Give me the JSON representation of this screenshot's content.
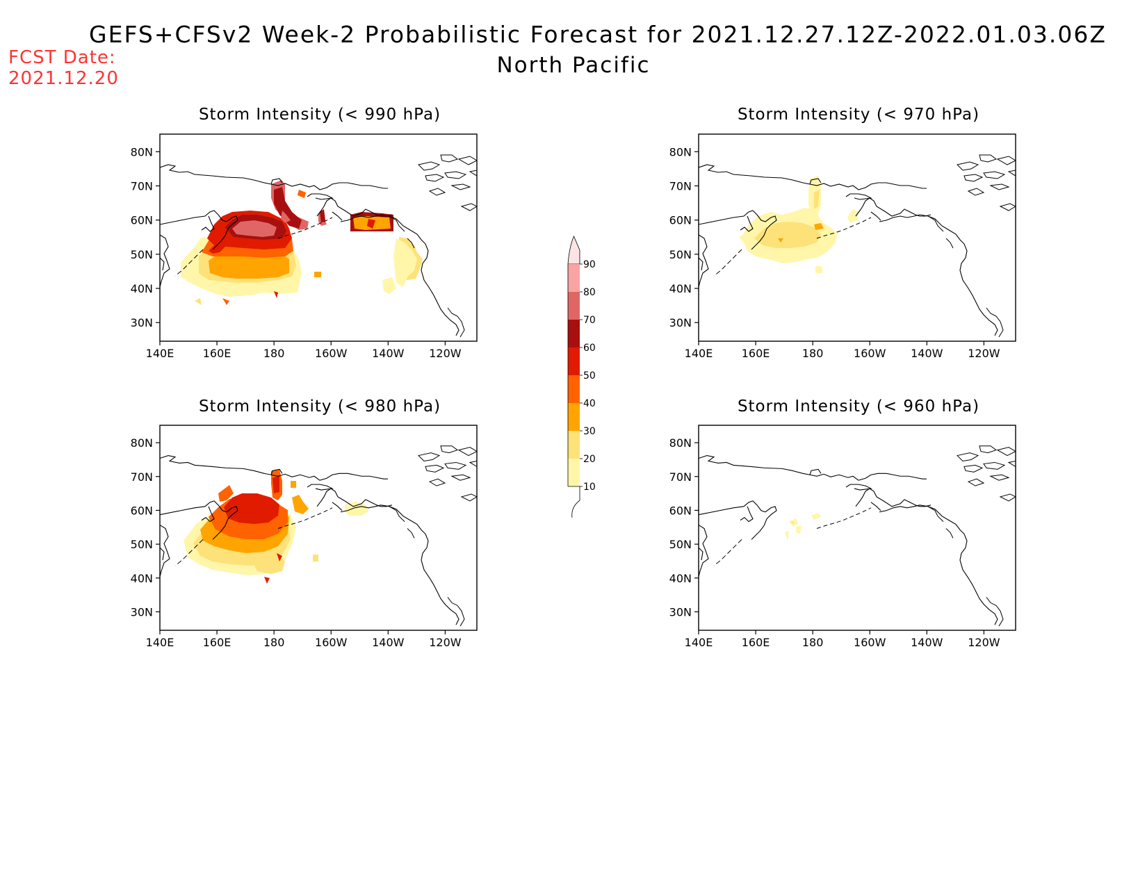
{
  "header": {
    "title": "GEFS+CFSv2 Week-2 Probabilistic Forecast for 2021.12.27.12Z-2022.01.03.06Z",
    "region": "North Pacific",
    "fcst_label": "FCST Date:",
    "fcst_date": "2021.12.20"
  },
  "map": {
    "lat_ticks": [
      "80N",
      "70N",
      "60N",
      "50N",
      "40N",
      "30N"
    ],
    "lon_ticks": [
      "140E",
      "160E",
      "180",
      "160W",
      "140W",
      "120W"
    ]
  },
  "panels": [
    {
      "id": "p990",
      "title": "Storm Intensity (< 990 hPa)"
    },
    {
      "id": "p970",
      "title": "Storm Intensity (< 970 hPa)"
    },
    {
      "id": "p980",
      "title": "Storm Intensity (< 980 hPa)"
    },
    {
      "id": "p960",
      "title": "Storm Intensity (< 960 hPa)"
    }
  ],
  "colorbar": {
    "labels": [
      "90",
      "80",
      "70",
      "60",
      "50",
      "40",
      "30",
      "20",
      "10"
    ],
    "colors": [
      "#f9a3a3",
      "#e06666",
      "#a80f0f",
      "#e01b00",
      "#ff6200",
      "#ffa400",
      "#fde27a",
      "#fff6aa"
    ],
    "top_color": "#fde3e3"
  },
  "colors": {
    "fcst_date": "#ff3333"
  }
}
